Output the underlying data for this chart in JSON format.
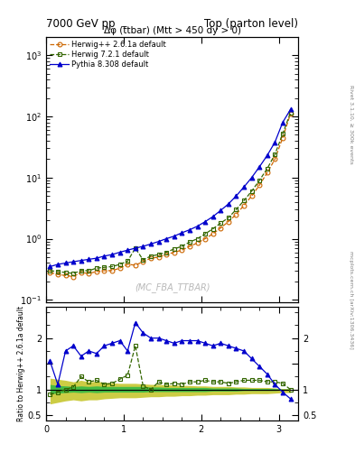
{
  "title_left": "7000 GeV pp",
  "title_right": "Top (parton level)",
  "plot_title": "Δφ (t̅tbar) (Mtt > 450 dy > 0)",
  "watermark": "(MC_FBA_TTBAR)",
  "right_label": "Rivet 3.1.10, ≥ 300k events",
  "arxiv_label": "mcplots.cern.ch [arXiv:1306.3436]",
  "ylabel_ratio": "Ratio to Herwig++ 2.6.1a default",
  "ylim_main": [
    0.09,
    2000
  ],
  "ylim_ratio": [
    0.4,
    2.6
  ],
  "xmin": 0.0,
  "xmax": 3.25,
  "herwig_color": "#cc6600",
  "herwig7_color": "#336600",
  "pythia_color": "#0000cc",
  "green_band_color": "#44bb44",
  "yellow_band_color": "#cccc44",
  "x_main": [
    0.05,
    0.15,
    0.25,
    0.35,
    0.45,
    0.55,
    0.65,
    0.75,
    0.85,
    0.95,
    1.05,
    1.15,
    1.25,
    1.35,
    1.45,
    1.55,
    1.65,
    1.75,
    1.85,
    1.95,
    2.05,
    2.15,
    2.25,
    2.35,
    2.45,
    2.55,
    2.65,
    2.75,
    2.85,
    2.95,
    3.05,
    3.15
  ],
  "herwig_y": [
    0.28,
    0.26,
    0.25,
    0.24,
    0.28,
    0.27,
    0.29,
    0.3,
    0.3,
    0.33,
    0.38,
    0.37,
    0.42,
    0.48,
    0.5,
    0.55,
    0.6,
    0.65,
    0.75,
    0.85,
    1.0,
    1.2,
    1.5,
    1.9,
    2.5,
    3.5,
    5.0,
    7.5,
    12.0,
    20.0,
    45.0,
    110.0
  ],
  "herwig7_y": [
    0.3,
    0.29,
    0.28,
    0.27,
    0.3,
    0.3,
    0.33,
    0.34,
    0.35,
    0.38,
    0.43,
    0.7,
    0.45,
    0.52,
    0.55,
    0.6,
    0.68,
    0.75,
    0.88,
    1.0,
    1.2,
    1.45,
    1.8,
    2.2,
    3.0,
    4.2,
    6.0,
    9.0,
    14.0,
    24.0,
    52.0,
    115.0
  ],
  "pythia_y": [
    0.35,
    0.38,
    0.4,
    0.42,
    0.44,
    0.46,
    0.48,
    0.52,
    0.55,
    0.6,
    0.65,
    0.7,
    0.75,
    0.82,
    0.9,
    1.0,
    1.1,
    1.25,
    1.4,
    1.6,
    1.9,
    2.3,
    2.9,
    3.7,
    5.0,
    7.0,
    10.0,
    15.0,
    23.0,
    38.0,
    80.0,
    130.0
  ],
  "ratio_herwig7": [
    0.9,
    0.95,
    1.0,
    1.05,
    1.25,
    1.15,
    1.18,
    1.1,
    1.12,
    1.2,
    1.28,
    1.85,
    1.07,
    1.0,
    1.15,
    1.1,
    1.12,
    1.1,
    1.15,
    1.15,
    1.18,
    1.15,
    1.15,
    1.12,
    1.15,
    1.18,
    1.18,
    1.18,
    1.15,
    1.15,
    1.12,
    1.0
  ],
  "ratio_pythia": [
    1.55,
    1.1,
    1.75,
    1.85,
    1.65,
    1.75,
    1.7,
    1.85,
    1.9,
    1.95,
    1.75,
    2.3,
    2.1,
    2.0,
    2.0,
    1.95,
    1.9,
    1.95,
    1.95,
    1.95,
    1.9,
    1.85,
    1.9,
    1.85,
    1.8,
    1.75,
    1.6,
    1.45,
    1.3,
    1.1,
    0.95,
    0.82
  ],
  "green_band_upper": [
    1.1,
    1.08,
    1.07,
    1.06,
    1.07,
    1.06,
    1.07,
    1.06,
    1.06,
    1.06,
    1.06,
    1.06,
    1.06,
    1.05,
    1.05,
    1.04,
    1.04,
    1.04,
    1.04,
    1.04,
    1.04,
    1.03,
    1.03,
    1.03,
    1.03,
    1.02,
    1.02,
    1.02,
    1.02,
    1.02,
    1.01,
    1.01
  ],
  "green_band_lower": [
    0.92,
    0.93,
    0.94,
    0.95,
    0.94,
    0.95,
    0.94,
    0.95,
    0.95,
    0.95,
    0.95,
    0.95,
    0.95,
    0.96,
    0.96,
    0.96,
    0.96,
    0.96,
    0.96,
    0.96,
    0.96,
    0.97,
    0.97,
    0.97,
    0.97,
    0.98,
    0.98,
    0.98,
    0.98,
    0.98,
    0.99,
    0.99
  ],
  "yellow_band_upper": [
    1.22,
    1.2,
    1.18,
    1.15,
    1.18,
    1.15,
    1.16,
    1.14,
    1.13,
    1.12,
    1.12,
    1.12,
    1.11,
    1.1,
    1.1,
    1.09,
    1.09,
    1.08,
    1.08,
    1.07,
    1.07,
    1.06,
    1.06,
    1.06,
    1.05,
    1.05,
    1.04,
    1.04,
    1.04,
    1.03,
    1.02,
    1.02
  ],
  "yellow_band_lower": [
    0.72,
    0.75,
    0.78,
    0.8,
    0.78,
    0.8,
    0.8,
    0.82,
    0.83,
    0.84,
    0.84,
    0.84,
    0.85,
    0.86,
    0.86,
    0.87,
    0.87,
    0.88,
    0.88,
    0.89,
    0.89,
    0.9,
    0.9,
    0.9,
    0.91,
    0.91,
    0.92,
    0.92,
    0.92,
    0.93,
    0.94,
    0.94
  ]
}
